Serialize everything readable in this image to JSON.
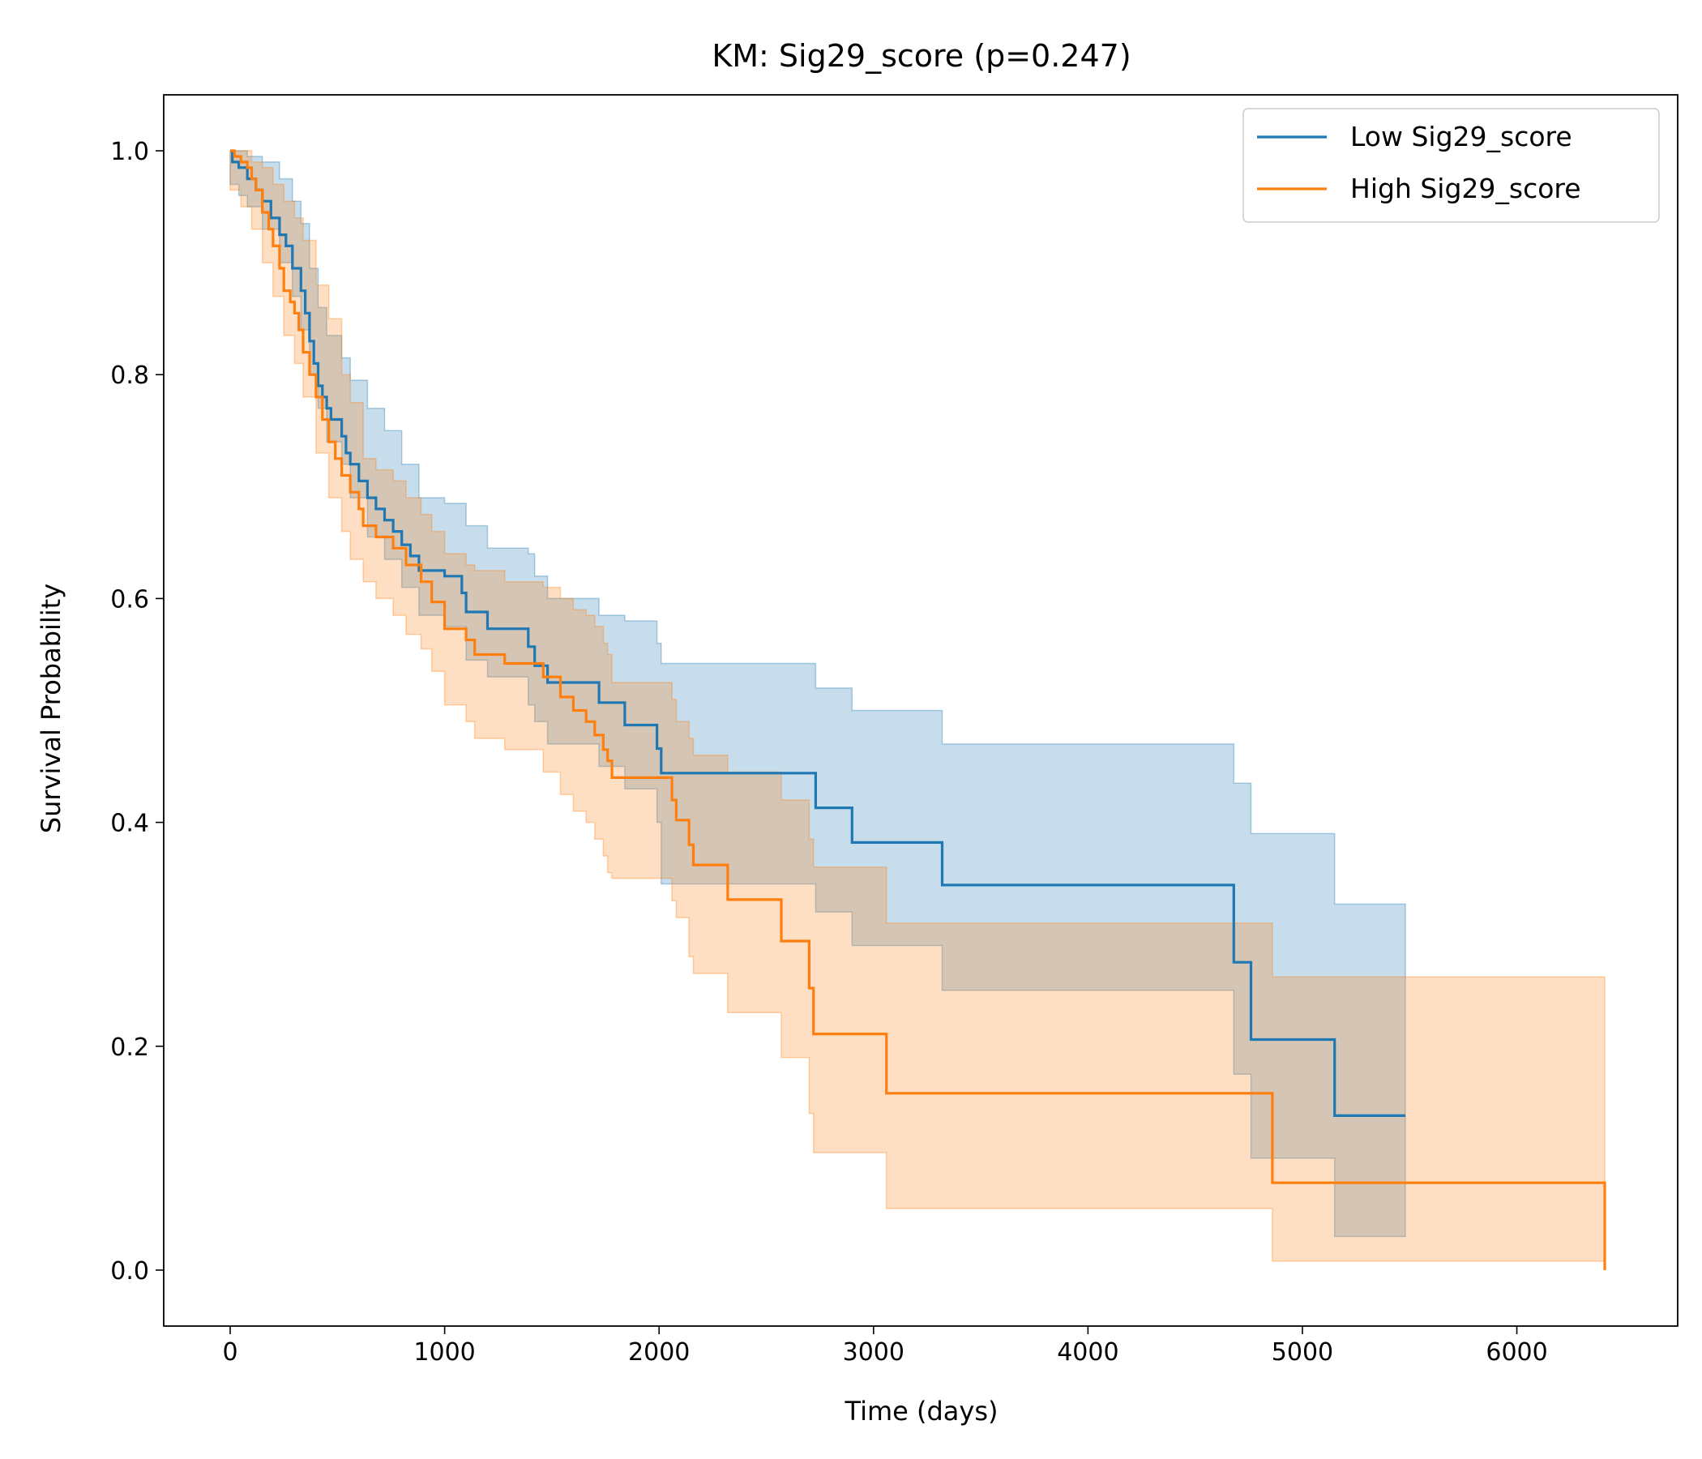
{
  "chart_data": {
    "type": "line",
    "subtype": "kaplan-meier step",
    "title": "KM: Sig29_score (p=0.247)",
    "xlabel": "Time (days)",
    "ylabel": "Survival Probability",
    "xlim": [
      -310,
      6750
    ],
    "ylim": [
      -0.05,
      1.05
    ],
    "xticks": [
      0,
      1000,
      2000,
      3000,
      4000,
      5000,
      6000
    ],
    "yticks": [
      0.0,
      0.2,
      0.4,
      0.6,
      0.8,
      1.0
    ],
    "xtick_labels": [
      "0",
      "1000",
      "2000",
      "3000",
      "4000",
      "5000",
      "6000"
    ],
    "ytick_labels": [
      "0.0",
      "0.2",
      "0.4",
      "0.6",
      "0.8",
      "1.0"
    ],
    "grid": false,
    "legend_position": "top-right",
    "series": [
      {
        "name": "Low Sig29_score",
        "color": "#1f77b4",
        "fill_color": "#1f77b4",
        "steps": [
          [
            0,
            1.0
          ],
          [
            10,
            0.99
          ],
          [
            40,
            0.985
          ],
          [
            80,
            0.975
          ],
          [
            120,
            0.965
          ],
          [
            150,
            0.955
          ],
          [
            190,
            0.94
          ],
          [
            230,
            0.925
          ],
          [
            260,
            0.915
          ],
          [
            290,
            0.895
          ],
          [
            330,
            0.875
          ],
          [
            350,
            0.855
          ],
          [
            370,
            0.83
          ],
          [
            390,
            0.81
          ],
          [
            410,
            0.79
          ],
          [
            430,
            0.78
          ],
          [
            450,
            0.77
          ],
          [
            470,
            0.76
          ],
          [
            520,
            0.745
          ],
          [
            540,
            0.73
          ],
          [
            560,
            0.72
          ],
          [
            600,
            0.705
          ],
          [
            640,
            0.69
          ],
          [
            680,
            0.68
          ],
          [
            720,
            0.67
          ],
          [
            760,
            0.66
          ],
          [
            800,
            0.648
          ],
          [
            840,
            0.638
          ],
          [
            880,
            0.625
          ],
          [
            1000,
            0.62
          ],
          [
            1080,
            0.605
          ],
          [
            1100,
            0.588
          ],
          [
            1200,
            0.573
          ],
          [
            1390,
            0.557
          ],
          [
            1420,
            0.54
          ],
          [
            1480,
            0.525
          ],
          [
            1720,
            0.507
          ],
          [
            1840,
            0.487
          ],
          [
            1990,
            0.466
          ],
          [
            2010,
            0.444
          ],
          [
            2730,
            0.413
          ],
          [
            2900,
            0.382
          ],
          [
            3320,
            0.344
          ],
          [
            4680,
            0.275
          ],
          [
            4760,
            0.206
          ],
          [
            5150,
            0.138
          ],
          [
            5480,
            0.138
          ]
        ],
        "ci_lower": [
          [
            0,
            0.97
          ],
          [
            40,
            0.96
          ],
          [
            80,
            0.95
          ],
          [
            150,
            0.93
          ],
          [
            230,
            0.9
          ],
          [
            290,
            0.87
          ],
          [
            330,
            0.84
          ],
          [
            370,
            0.8
          ],
          [
            410,
            0.77
          ],
          [
            450,
            0.74
          ],
          [
            520,
            0.72
          ],
          [
            560,
            0.69
          ],
          [
            640,
            0.655
          ],
          [
            720,
            0.635
          ],
          [
            800,
            0.61
          ],
          [
            880,
            0.585
          ],
          [
            1000,
            0.575
          ],
          [
            1100,
            0.545
          ],
          [
            1200,
            0.53
          ],
          [
            1390,
            0.505
          ],
          [
            1420,
            0.49
          ],
          [
            1480,
            0.47
          ],
          [
            1720,
            0.45
          ],
          [
            1840,
            0.43
          ],
          [
            1990,
            0.4
          ],
          [
            2010,
            0.345
          ],
          [
            2730,
            0.32
          ],
          [
            2900,
            0.29
          ],
          [
            3320,
            0.25
          ],
          [
            4680,
            0.175
          ],
          [
            4760,
            0.1
          ],
          [
            5150,
            0.03
          ],
          [
            5480,
            0.03
          ]
        ],
        "ci_upper": [
          [
            0,
            1.0
          ],
          [
            40,
            1.0
          ],
          [
            80,
            0.995
          ],
          [
            150,
            0.99
          ],
          [
            230,
            0.975
          ],
          [
            290,
            0.955
          ],
          [
            330,
            0.935
          ],
          [
            370,
            0.895
          ],
          [
            410,
            0.86
          ],
          [
            450,
            0.835
          ],
          [
            520,
            0.815
          ],
          [
            560,
            0.795
          ],
          [
            640,
            0.77
          ],
          [
            720,
            0.75
          ],
          [
            800,
            0.72
          ],
          [
            880,
            0.69
          ],
          [
            1000,
            0.685
          ],
          [
            1100,
            0.665
          ],
          [
            1200,
            0.645
          ],
          [
            1390,
            0.64
          ],
          [
            1420,
            0.62
          ],
          [
            1480,
            0.6
          ],
          [
            1720,
            0.585
          ],
          [
            1840,
            0.58
          ],
          [
            1990,
            0.56
          ],
          [
            2010,
            0.542
          ],
          [
            2730,
            0.52
          ],
          [
            2900,
            0.5
          ],
          [
            3320,
            0.47
          ],
          [
            4680,
            0.435
          ],
          [
            4760,
            0.39
          ],
          [
            5150,
            0.327
          ],
          [
            5480,
            0.327
          ]
        ]
      },
      {
        "name": "High Sig29_score",
        "color": "#ff7f0e",
        "fill_color": "#ff7f0e",
        "steps": [
          [
            0,
            1.0
          ],
          [
            20,
            0.995
          ],
          [
            50,
            0.99
          ],
          [
            80,
            0.985
          ],
          [
            100,
            0.975
          ],
          [
            120,
            0.965
          ],
          [
            150,
            0.945
          ],
          [
            180,
            0.93
          ],
          [
            200,
            0.915
          ],
          [
            230,
            0.895
          ],
          [
            250,
            0.875
          ],
          [
            280,
            0.865
          ],
          [
            300,
            0.855
          ],
          [
            320,
            0.84
          ],
          [
            340,
            0.82
          ],
          [
            370,
            0.8
          ],
          [
            400,
            0.78
          ],
          [
            430,
            0.76
          ],
          [
            460,
            0.74
          ],
          [
            490,
            0.725
          ],
          [
            520,
            0.71
          ],
          [
            560,
            0.695
          ],
          [
            600,
            0.68
          ],
          [
            620,
            0.665
          ],
          [
            680,
            0.655
          ],
          [
            760,
            0.645
          ],
          [
            820,
            0.63
          ],
          [
            890,
            0.615
          ],
          [
            940,
            0.597
          ],
          [
            1000,
            0.573
          ],
          [
            1100,
            0.563
          ],
          [
            1140,
            0.55
          ],
          [
            1280,
            0.542
          ],
          [
            1460,
            0.53
          ],
          [
            1540,
            0.512
          ],
          [
            1600,
            0.5
          ],
          [
            1660,
            0.49
          ],
          [
            1700,
            0.478
          ],
          [
            1740,
            0.465
          ],
          [
            1760,
            0.455
          ],
          [
            1780,
            0.44
          ],
          [
            2060,
            0.42
          ],
          [
            2080,
            0.402
          ],
          [
            2140,
            0.38
          ],
          [
            2160,
            0.362
          ],
          [
            2320,
            0.331
          ],
          [
            2570,
            0.294
          ],
          [
            2700,
            0.252
          ],
          [
            2720,
            0.211
          ],
          [
            3060,
            0.158
          ],
          [
            4860,
            0.078
          ],
          [
            6410,
            0.0
          ]
        ],
        "ci_lower": [
          [
            0,
            0.965
          ],
          [
            50,
            0.95
          ],
          [
            100,
            0.93
          ],
          [
            150,
            0.9
          ],
          [
            200,
            0.87
          ],
          [
            250,
            0.835
          ],
          [
            300,
            0.81
          ],
          [
            340,
            0.78
          ],
          [
            400,
            0.73
          ],
          [
            460,
            0.69
          ],
          [
            520,
            0.66
          ],
          [
            560,
            0.635
          ],
          [
            620,
            0.615
          ],
          [
            680,
            0.6
          ],
          [
            760,
            0.585
          ],
          [
            820,
            0.568
          ],
          [
            890,
            0.555
          ],
          [
            940,
            0.535
          ],
          [
            1000,
            0.505
          ],
          [
            1100,
            0.49
          ],
          [
            1140,
            0.475
          ],
          [
            1280,
            0.465
          ],
          [
            1460,
            0.445
          ],
          [
            1540,
            0.425
          ],
          [
            1600,
            0.41
          ],
          [
            1660,
            0.4
          ],
          [
            1700,
            0.385
          ],
          [
            1740,
            0.37
          ],
          [
            1760,
            0.355
          ],
          [
            1780,
            0.35
          ],
          [
            2060,
            0.33
          ],
          [
            2080,
            0.315
          ],
          [
            2140,
            0.28
          ],
          [
            2160,
            0.265
          ],
          [
            2320,
            0.23
          ],
          [
            2570,
            0.19
          ],
          [
            2700,
            0.14
          ],
          [
            2720,
            0.105
          ],
          [
            3060,
            0.055
          ],
          [
            4860,
            0.008
          ],
          [
            6410,
            0.008
          ]
        ],
        "ci_upper": [
          [
            0,
            1.0
          ],
          [
            50,
            1.0
          ],
          [
            100,
            0.99
          ],
          [
            150,
            0.985
          ],
          [
            200,
            0.97
          ],
          [
            250,
            0.955
          ],
          [
            300,
            0.94
          ],
          [
            340,
            0.92
          ],
          [
            400,
            0.88
          ],
          [
            460,
            0.85
          ],
          [
            520,
            0.8
          ],
          [
            560,
            0.775
          ],
          [
            620,
            0.725
          ],
          [
            680,
            0.715
          ],
          [
            760,
            0.705
          ],
          [
            820,
            0.69
          ],
          [
            890,
            0.675
          ],
          [
            940,
            0.66
          ],
          [
            1000,
            0.64
          ],
          [
            1100,
            0.63
          ],
          [
            1140,
            0.625
          ],
          [
            1280,
            0.615
          ],
          [
            1460,
            0.61
          ],
          [
            1540,
            0.6
          ],
          [
            1600,
            0.59
          ],
          [
            1660,
            0.585
          ],
          [
            1700,
            0.575
          ],
          [
            1740,
            0.56
          ],
          [
            1760,
            0.55
          ],
          [
            1780,
            0.525
          ],
          [
            2060,
            0.51
          ],
          [
            2080,
            0.49
          ],
          [
            2140,
            0.475
          ],
          [
            2160,
            0.46
          ],
          [
            2320,
            0.445
          ],
          [
            2570,
            0.42
          ],
          [
            2700,
            0.385
          ],
          [
            2720,
            0.36
          ],
          [
            3060,
            0.31
          ],
          [
            4860,
            0.262
          ],
          [
            6410,
            0.262
          ]
        ]
      }
    ]
  }
}
